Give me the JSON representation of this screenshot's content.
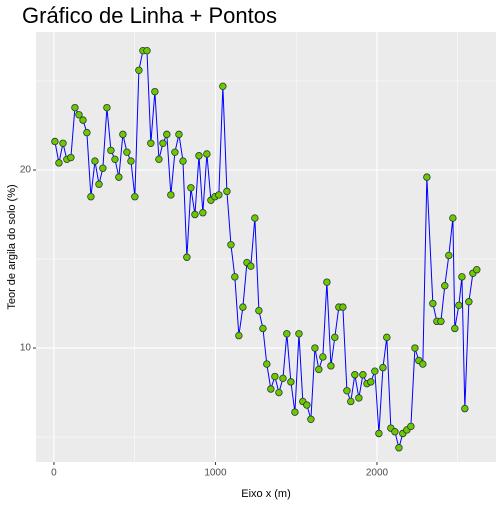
{
  "chart_data": {
    "type": "line",
    "title": "Gráfico de Linha + Pontos",
    "xlabel": "Eixo x (m)",
    "ylabel": "Teor de argila do solo (%)",
    "x": [
      6,
      31,
      56,
      80,
      105,
      130,
      155,
      180,
      204,
      229,
      254,
      279,
      303,
      328,
      353,
      378,
      402,
      427,
      452,
      477,
      501,
      526,
      551,
      576,
      600,
      625,
      650,
      675,
      699,
      724,
      749,
      774,
      799,
      823,
      848,
      873,
      898,
      922,
      947,
      972,
      997,
      1021,
      1046,
      1071,
      1096,
      1120,
      1145,
      1170,
      1195,
      1219,
      1244,
      1269,
      1294,
      1318,
      1343,
      1368,
      1393,
      1418,
      1442,
      1467,
      1492,
      1517,
      1541,
      1566,
      1591,
      1616,
      1640,
      1665,
      1690,
      1715,
      1739,
      1764,
      1789,
      1814,
      1838,
      1863,
      1888,
      1913,
      1938,
      1962,
      1987,
      2012,
      2037,
      2061,
      2086,
      2111,
      2136,
      2160,
      2185,
      2210,
      2235,
      2259,
      2284,
      2309,
      2346,
      2371,
      2396,
      2420,
      2445,
      2470,
      2482,
      2507,
      2526,
      2544,
      2569,
      2594,
      2618
    ],
    "values": [
      21.6,
      20.4,
      21.5,
      20.6,
      20.7,
      23.5,
      23.1,
      22.8,
      22.1,
      18.5,
      20.5,
      19.2,
      20.1,
      23.5,
      21.1,
      20.6,
      19.6,
      22.0,
      21.0,
      20.5,
      18.5,
      25.6,
      26.7,
      26.7,
      21.5,
      24.4,
      20.6,
      21.5,
      22.0,
      18.6,
      21.0,
      22.0,
      20.5,
      15.1,
      19.0,
      17.5,
      20.8,
      17.6,
      20.9,
      18.3,
      18.5,
      18.6,
      24.7,
      18.8,
      15.8,
      14.0,
      10.7,
      12.3,
      14.8,
      14.6,
      17.3,
      12.1,
      11.1,
      9.1,
      7.7,
      8.4,
      7.5,
      8.3,
      10.8,
      8.1,
      6.4,
      10.8,
      7.0,
      6.8,
      6.0,
      10.0,
      8.8,
      9.5,
      13.7,
      9.0,
      10.6,
      12.3,
      12.3,
      7.6,
      7.0,
      8.5,
      7.2,
      8.5,
      8.0,
      8.1,
      8.7,
      5.2,
      8.9,
      10.6,
      5.5,
      5.3,
      4.4,
      5.2,
      5.4,
      5.6,
      10.0,
      9.3,
      9.1,
      19.6,
      12.5,
      11.5,
      11.5,
      13.5,
      15.2,
      17.3,
      11.1,
      12.4,
      14.0,
      6.6,
      12.6,
      14.2,
      14.4
    ],
    "color": "#0000ff",
    "marker_color": "#66cc00",
    "xlim": [
      -111,
      2737
    ],
    "ylim": [
      3.6,
      27.75
    ],
    "xticks": [
      0,
      1000,
      2000
    ],
    "yticks": [
      10,
      20
    ],
    "grid": true
  }
}
